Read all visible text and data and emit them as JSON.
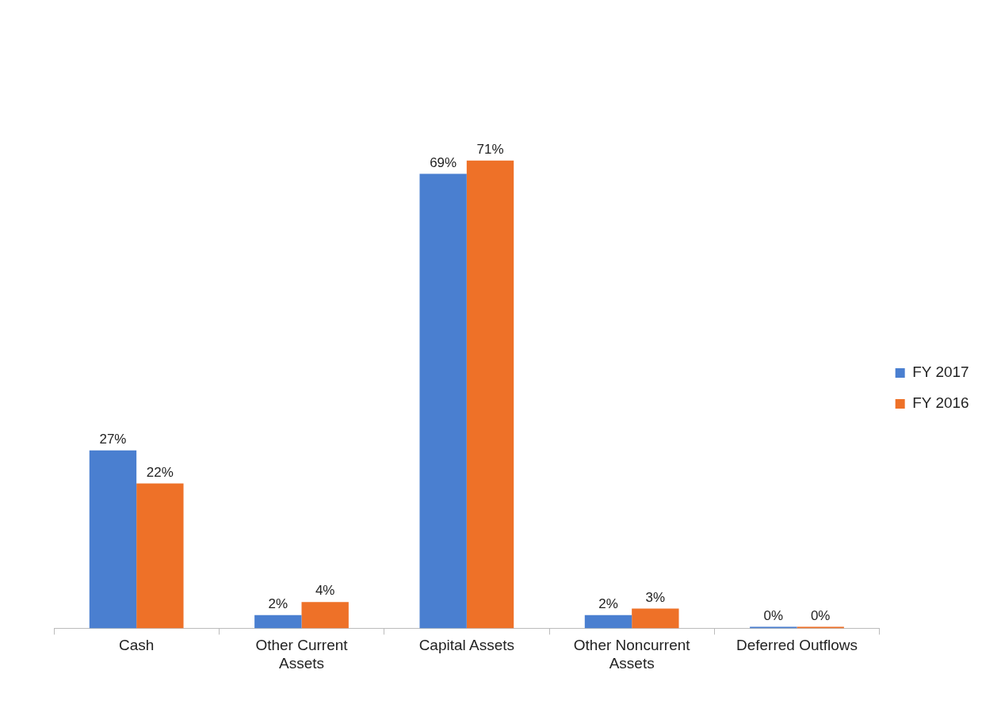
{
  "chart_data": {
    "type": "bar",
    "categories": [
      "Cash",
      "Other Current Assets",
      "Capital Assets",
      "Other Noncurrent Assets",
      "Deferred Outflows"
    ],
    "series": [
      {
        "name": "FY 2017",
        "color": "#4a7fd0",
        "values": [
          27,
          2,
          69,
          2,
          0
        ],
        "value_labels": [
          "27%",
          "2%",
          "69%",
          "2%",
          "0%"
        ]
      },
      {
        "name": "FY 2016",
        "color": "#ee7128",
        "values": [
          22,
          4,
          71,
          3,
          0
        ],
        "value_labels": [
          "22%",
          "4%",
          "71%",
          "3%",
          "0%"
        ]
      }
    ],
    "legend": "right",
    "grid": false
  }
}
